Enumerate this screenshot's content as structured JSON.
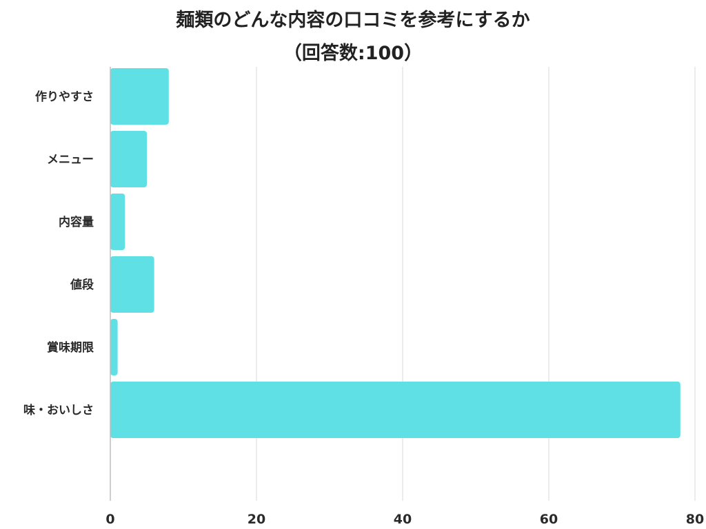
{
  "chart_data": {
    "type": "bar",
    "orientation": "horizontal",
    "title": "麺類のどんな内容の口コミを参考にするか",
    "subtitle": "（回答数:100）",
    "categories": [
      "作りやすさ",
      "メニュー",
      "内容量",
      "値段",
      "賞味期限",
      "味・おいしさ"
    ],
    "values": [
      8,
      5,
      2,
      6,
      1,
      78
    ],
    "xlabel": "",
    "ylabel": "",
    "xlim": [
      0,
      80
    ],
    "xticks": [
      "0",
      "20",
      "40",
      "60",
      "80"
    ],
    "grid": true,
    "legend": "none",
    "bar_color": "#5ee0e4",
    "grid_color": "#d9d9d9",
    "axis_color": "#bdbdbd"
  }
}
